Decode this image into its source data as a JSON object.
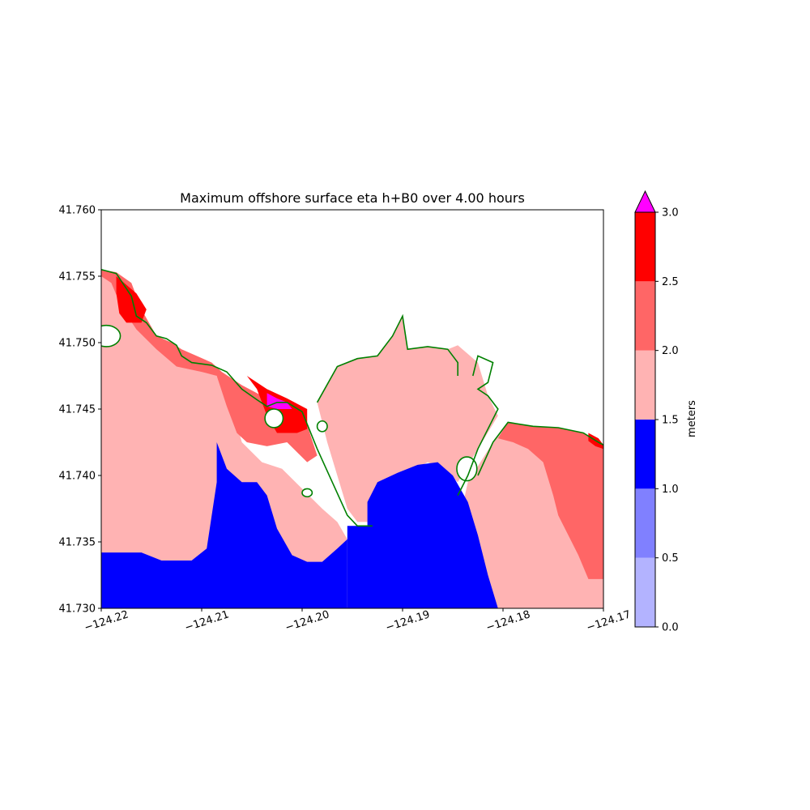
{
  "chart_data": {
    "type": "heatmap",
    "title": "Maximum offshore surface eta h+B0 over 4.00 hours",
    "xlabel": "",
    "ylabel": "",
    "xlim": [
      -124.22,
      -124.17
    ],
    "ylim": [
      41.73,
      41.76
    ],
    "x_ticks": [
      {
        "value": -124.22,
        "label": "−124.22"
      },
      {
        "value": -124.21,
        "label": "−124.21"
      },
      {
        "value": -124.2,
        "label": "−124.20"
      },
      {
        "value": -124.19,
        "label": "−124.19"
      },
      {
        "value": -124.18,
        "label": "−124.18"
      },
      {
        "value": -124.17,
        "label": "−124.17"
      }
    ],
    "y_ticks": [
      {
        "value": 41.73,
        "label": "41.730"
      },
      {
        "value": 41.735,
        "label": "41.735"
      },
      {
        "value": 41.74,
        "label": "41.740"
      },
      {
        "value": 41.745,
        "label": "41.745"
      },
      {
        "value": 41.75,
        "label": "41.750"
      },
      {
        "value": 41.755,
        "label": "41.755"
      },
      {
        "value": 41.76,
        "label": "41.760"
      }
    ],
    "grid": false,
    "colorbar": {
      "label": "meters",
      "levels": [
        0.0,
        0.5,
        1.0,
        1.5,
        2.0,
        2.5,
        3.0
      ],
      "tick_labels": [
        "0.0",
        "0.5",
        "1.0",
        "1.5",
        "2.0",
        "2.5",
        "3.0"
      ],
      "colors": [
        "#b3b3ff",
        "#8080ff",
        "#0000ff",
        "#ffb3b3",
        "#ff6666",
        "#ff0000"
      ],
      "over_color": "#ff00ff",
      "extend": "max"
    },
    "contour_color": "#008000",
    "regions": [
      {
        "level": "1.5-2.0",
        "color": "#ffb3b3",
        "name": "west-offshore",
        "points": [
          [
            -124.22,
            41.7555
          ],
          [
            -124.219,
            41.7548
          ],
          [
            -124.218,
            41.753
          ],
          [
            -124.2165,
            41.7515
          ],
          [
            -124.2145,
            41.7498
          ],
          [
            -124.2125,
            41.7485
          ],
          [
            -124.21,
            41.748
          ],
          [
            -124.2085,
            41.7475
          ],
          [
            -124.207,
            41.7452
          ],
          [
            -124.206,
            41.7425
          ],
          [
            -124.204,
            41.741
          ],
          [
            -124.202,
            41.7405
          ],
          [
            -124.2,
            41.739
          ],
          [
            -124.198,
            41.7375
          ],
          [
            -124.1965,
            41.7365
          ],
          [
            -124.1955,
            41.7352
          ],
          [
            -124.1955,
            41.73
          ],
          [
            -124.22,
            41.73
          ]
        ]
      },
      {
        "level": "1.5-2.0",
        "color": "#ffb3b3",
        "name": "bay",
        "points": [
          [
            -124.1985,
            41.7455
          ],
          [
            -124.1965,
            41.7482
          ],
          [
            -124.1945,
            41.7488
          ],
          [
            -124.1925,
            41.749
          ],
          [
            -124.191,
            41.7505
          ],
          [
            -124.19,
            41.752
          ],
          [
            -124.1895,
            41.7495
          ],
          [
            -124.1875,
            41.7497
          ],
          [
            -124.1855,
            41.7495
          ],
          [
            -124.184,
            41.7486
          ],
          [
            -124.1835,
            41.7475
          ],
          [
            -124.1855,
            41.7495
          ],
          [
            -124.1845,
            41.7498
          ],
          [
            -124.1825,
            41.7485
          ],
          [
            -124.1815,
            41.746
          ],
          [
            -124.1805,
            41.7445
          ],
          [
            -124.1825,
            41.742
          ],
          [
            -124.1845,
            41.7395
          ],
          [
            -124.186,
            41.7405
          ],
          [
            -124.1875,
            41.741
          ],
          [
            -124.1895,
            41.7402
          ],
          [
            -124.1915,
            41.7394
          ],
          [
            -124.1925,
            41.7385
          ],
          [
            -124.193,
            41.7365
          ],
          [
            -124.1945,
            41.7365
          ],
          [
            -124.1955,
            41.7375
          ],
          [
            -124.1975,
            41.7425
          ]
        ]
      },
      {
        "level": "1.5-2.0",
        "color": "#ffb3b3",
        "name": "east-offshore",
        "points": [
          [
            -124.1835,
            41.7395
          ],
          [
            -124.181,
            41.7425
          ],
          [
            -124.1795,
            41.744
          ],
          [
            -124.177,
            41.7437
          ],
          [
            -124.1745,
            41.7436
          ],
          [
            -124.172,
            41.7432
          ],
          [
            -124.1705,
            41.7425
          ],
          [
            -124.17,
            41.7423
          ],
          [
            -124.17,
            41.73
          ],
          [
            -124.181,
            41.73
          ],
          [
            -124.1825,
            41.7345
          ],
          [
            -124.184,
            41.7378
          ]
        ]
      },
      {
        "level": "1.0-1.5",
        "color": "#0000ff",
        "name": "south-west-blue",
        "points": [
          [
            -124.22,
            41.7342
          ],
          [
            -124.216,
            41.7342
          ],
          [
            -124.214,
            41.7336
          ],
          [
            -124.211,
            41.7336
          ],
          [
            -124.2095,
            41.7345
          ],
          [
            -124.2085,
            41.7395
          ],
          [
            -124.2085,
            41.7425
          ],
          [
            -124.2075,
            41.7405
          ],
          [
            -124.206,
            41.7395
          ],
          [
            -124.2045,
            41.7395
          ],
          [
            -124.2035,
            41.7385
          ],
          [
            -124.2025,
            41.736
          ],
          [
            -124.201,
            41.734
          ],
          [
            -124.1995,
            41.7335
          ],
          [
            -124.198,
            41.7335
          ],
          [
            -124.1965,
            41.7345
          ],
          [
            -124.1955,
            41.7352
          ],
          [
            -124.1955,
            41.73
          ],
          [
            -124.22,
            41.73
          ]
        ]
      },
      {
        "level": "1.0-1.5",
        "color": "#0000ff",
        "name": "south-central-blue",
        "points": [
          [
            -124.1955,
            41.7362
          ],
          [
            -124.1935,
            41.7362
          ],
          [
            -124.1935,
            41.738
          ],
          [
            -124.1925,
            41.7395
          ],
          [
            -124.1905,
            41.7402
          ],
          [
            -124.1885,
            41.7408
          ],
          [
            -124.1865,
            41.741
          ],
          [
            -124.185,
            41.74
          ],
          [
            -124.1835,
            41.738
          ],
          [
            -124.1825,
            41.7355
          ],
          [
            -124.1815,
            41.7325
          ],
          [
            -124.1805,
            41.73
          ],
          [
            -124.1955,
            41.73
          ]
        ]
      },
      {
        "level": "2.0-2.5",
        "color": "#ff6666",
        "name": "west-coast-band",
        "points": [
          [
            -124.22,
            41.7555
          ],
          [
            -124.2185,
            41.7553
          ],
          [
            -124.217,
            41.7545
          ],
          [
            -124.216,
            41.7525
          ],
          [
            -124.2145,
            41.7505
          ],
          [
            -124.213,
            41.75
          ],
          [
            -124.212,
            41.7495
          ],
          [
            -124.2105,
            41.749
          ],
          [
            -124.209,
            41.7485
          ],
          [
            -124.208,
            41.7478
          ],
          [
            -124.206,
            41.7468
          ],
          [
            -124.204,
            41.746
          ],
          [
            -124.2025,
            41.7455
          ],
          [
            -124.2015,
            41.745
          ],
          [
            -124.1995,
            41.7438
          ],
          [
            -124.1985,
            41.7415
          ],
          [
            -124.1995,
            41.741
          ],
          [
            -124.2015,
            41.7425
          ],
          [
            -124.2035,
            41.7422
          ],
          [
            -124.2055,
            41.7425
          ],
          [
            -124.2065,
            41.7432
          ],
          [
            -124.2075,
            41.7452
          ],
          [
            -124.2085,
            41.7475
          ],
          [
            -124.21,
            41.7478
          ],
          [
            -124.2125,
            41.7482
          ],
          [
            -124.2145,
            41.7495
          ],
          [
            -124.2165,
            41.751
          ],
          [
            -124.218,
            41.7527
          ],
          [
            -124.219,
            41.7545
          ],
          [
            -124.22,
            41.755
          ]
        ]
      },
      {
        "level": "2.0-2.5",
        "color": "#ff6666",
        "name": "east-coast-band",
        "points": [
          [
            -124.1805,
            41.7428
          ],
          [
            -124.1795,
            41.744
          ],
          [
            -124.177,
            41.7437
          ],
          [
            -124.1745,
            41.7436
          ],
          [
            -124.172,
            41.7432
          ],
          [
            -124.1705,
            41.7425
          ],
          [
            -124.17,
            41.7423
          ],
          [
            -124.17,
            41.7322
          ],
          [
            -124.1715,
            41.7322
          ],
          [
            -124.1725,
            41.734
          ],
          [
            -124.1735,
            41.7355
          ],
          [
            -124.1745,
            41.737
          ],
          [
            -124.175,
            41.7385
          ],
          [
            -124.176,
            41.741
          ],
          [
            -124.1775,
            41.742
          ],
          [
            -124.179,
            41.7425
          ]
        ]
      },
      {
        "level": "2.5-3.0",
        "color": "#ff0000",
        "name": "nw-headland-red",
        "points": [
          [
            -124.2185,
            41.755
          ],
          [
            -124.2165,
            41.7537
          ],
          [
            -124.2155,
            41.7525
          ],
          [
            -124.216,
            41.7515
          ],
          [
            -124.2175,
            41.7515
          ],
          [
            -124.2182,
            41.7522
          ],
          [
            -124.2185,
            41.7537
          ]
        ]
      },
      {
        "level": "2.5-3.0",
        "color": "#ff0000",
        "name": "central-red",
        "points": [
          [
            -124.2055,
            41.7475
          ],
          [
            -124.2045,
            41.7465
          ],
          [
            -124.204,
            41.7455
          ],
          [
            -124.2035,
            41.7445
          ],
          [
            -124.2025,
            41.7432
          ],
          [
            -124.2005,
            41.7432
          ],
          [
            -124.1995,
            41.7435
          ],
          [
            -124.1995,
            41.745
          ],
          [
            -124.2015,
            41.7458
          ],
          [
            -124.2035,
            41.7465
          ]
        ]
      },
      {
        "level": "2.5-3.0",
        "color": "#ff0000",
        "name": "east-red",
        "points": [
          [
            -124.1715,
            41.7432
          ],
          [
            -124.1705,
            41.7428
          ],
          [
            -124.17,
            41.7423
          ],
          [
            -124.17,
            41.742
          ],
          [
            -124.1708,
            41.7422
          ],
          [
            -124.1715,
            41.7426
          ]
        ]
      },
      {
        "level": ">3.0",
        "color": "#ff00ff",
        "name": "central-magenta",
        "points": [
          [
            -124.2035,
            41.7462
          ],
          [
            -124.2025,
            41.7458
          ],
          [
            -124.2015,
            41.7455
          ],
          [
            -124.201,
            41.745
          ],
          [
            -124.2025,
            41.745
          ],
          [
            -124.2035,
            41.7452
          ]
        ]
      }
    ],
    "shoreline_paths": [
      [
        [
          -124.22,
          41.7555
        ],
        [
          -124.2185,
          41.7552
        ],
        [
          -124.217,
          41.7535
        ],
        [
          -124.2165,
          41.752
        ],
        [
          -124.2155,
          41.7515
        ],
        [
          -124.2145,
          41.7505
        ],
        [
          -124.2135,
          41.7503
        ],
        [
          -124.2125,
          41.7498
        ],
        [
          -124.212,
          41.749
        ],
        [
          -124.211,
          41.7485
        ],
        [
          -124.209,
          41.7483
        ],
        [
          -124.2075,
          41.7478
        ],
        [
          -124.206,
          41.7465
        ],
        [
          -124.2045,
          41.7457
        ],
        [
          -124.2035,
          41.7452
        ],
        [
          -124.2025,
          41.7455
        ],
        [
          -124.2015,
          41.7455
        ],
        [
          -124.2,
          41.7448
        ],
        [
          -124.1985,
          41.742
        ],
        [
          -124.197,
          41.7395
        ],
        [
          -124.1955,
          41.737
        ],
        [
          -124.1945,
          41.7362
        ],
        [
          -124.1935,
          41.7362
        ],
        [
          -124.193,
          41.7362
        ]
      ],
      [
        [
          -124.1985,
          41.7455
        ],
        [
          -124.1965,
          41.7482
        ],
        [
          -124.1945,
          41.7488
        ],
        [
          -124.1925,
          41.749
        ],
        [
          -124.191,
          41.7505
        ],
        [
          -124.19,
          41.752
        ],
        [
          -124.1895,
          41.7495
        ],
        [
          -124.1875,
          41.7497
        ],
        [
          -124.1855,
          41.7495
        ],
        [
          -124.1845,
          41.7485
        ],
        [
          -124.1845,
          41.7475
        ]
      ],
      [
        [
          -124.183,
          41.7475
        ],
        [
          -124.1825,
          41.749
        ],
        [
          -124.181,
          41.7485
        ],
        [
          -124.1815,
          41.747
        ],
        [
          -124.1825,
          41.7465
        ],
        [
          -124.1815,
          41.746
        ],
        [
          -124.1805,
          41.745
        ],
        [
          -124.1815,
          41.7435
        ],
        [
          -124.1825,
          41.742
        ],
        [
          -124.1835,
          41.74
        ],
        [
          -124.1845,
          41.7385
        ]
      ],
      [
        [
          -124.1825,
          41.74
        ],
        [
          -124.181,
          41.7425
        ],
        [
          -124.1795,
          41.744
        ],
        [
          -124.177,
          41.7437
        ],
        [
          -124.1745,
          41.7436
        ],
        [
          -124.172,
          41.7432
        ],
        [
          -124.1705,
          41.7425
        ],
        [
          -124.17,
          41.7423
        ]
      ]
    ],
    "islands": [
      {
        "lon": -124.2195,
        "lat": 41.7505,
        "rx": 0.0014,
        "ry": 0.0008
      },
      {
        "lon": -124.2028,
        "lat": 41.7443,
        "rx": 0.0009,
        "ry": 0.0007
      },
      {
        "lon": -124.198,
        "lat": 41.7437,
        "rx": 0.0005,
        "ry": 0.0004
      },
      {
        "lon": -124.1995,
        "lat": 41.7387,
        "rx": 0.0005,
        "ry": 0.0003
      },
      {
        "lon": -124.1836,
        "lat": 41.7405,
        "rx": 0.001,
        "ry": 0.0009
      }
    ]
  }
}
